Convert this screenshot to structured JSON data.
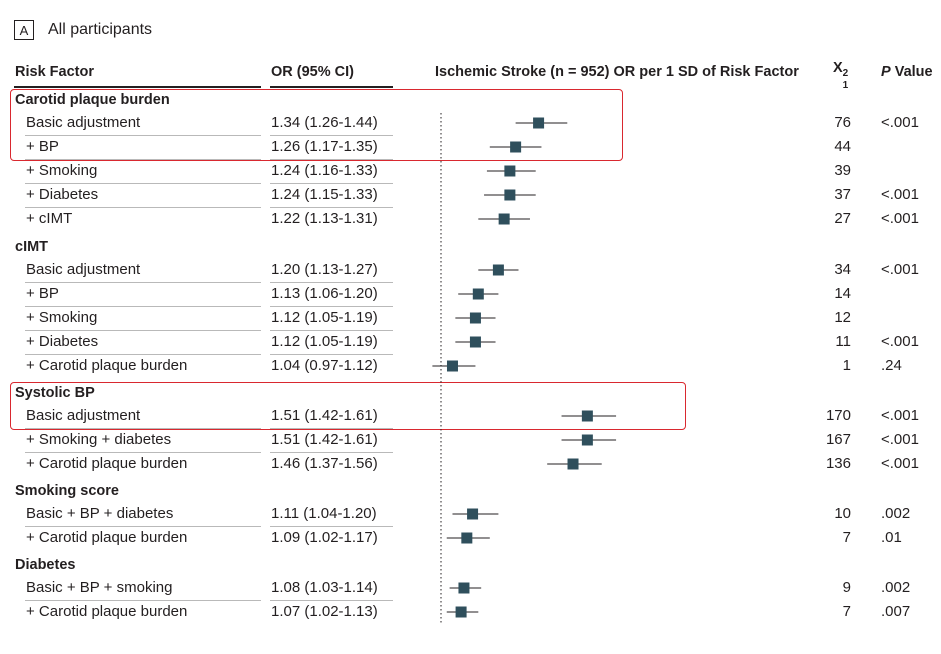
{
  "panel": {
    "label": "A",
    "title": "All participants"
  },
  "headers": {
    "risk_factor": "Risk Factor",
    "or": "OR (95% CI)",
    "plot": "Ischemic Stroke (n = 952) OR per 1 SD of Risk Factor",
    "chi": "X",
    "chi_sup": "2",
    "chi_sub": "1",
    "p": "P",
    "p_rest": " Value"
  },
  "colors": {
    "marker": "#2f4f5c",
    "highlight": "#d9282f",
    "text": "#231f20"
  },
  "chart_data": {
    "type": "forest",
    "xlabel": "Ischemic Stroke (n = 952) OR per 1 SD of Risk Factor",
    "reference_line": 1.0,
    "groups": [
      {
        "name": "Carotid plaque burden",
        "highlighted_rows": [
          0,
          1
        ],
        "rows": [
          {
            "label": "Basic adjustment",
            "or_text": "1.34 (1.26-1.44)",
            "or": 1.34,
            "lo": 1.26,
            "hi": 1.44,
            "chi2": "76",
            "p": "<.001"
          },
          {
            "label": "+ BP",
            "or_text": "1.26 (1.17-1.35)",
            "or": 1.26,
            "lo": 1.17,
            "hi": 1.35,
            "chi2": "44",
            "p": ""
          },
          {
            "label": "+ Smoking",
            "or_text": "1.24 (1.16-1.33)",
            "or": 1.24,
            "lo": 1.16,
            "hi": 1.33,
            "chi2": "39",
            "p": ""
          },
          {
            "label": "+ Diabetes",
            "or_text": "1.24 (1.15-1.33)",
            "or": 1.24,
            "lo": 1.15,
            "hi": 1.33,
            "chi2": "37",
            "p": "<.001"
          },
          {
            "label": "+ cIMT",
            "or_text": "1.22 (1.13-1.31)",
            "or": 1.22,
            "lo": 1.13,
            "hi": 1.31,
            "chi2": "27",
            "p": "<.001"
          }
        ]
      },
      {
        "name": "cIMT",
        "highlighted_rows": [],
        "rows": [
          {
            "label": "Basic adjustment",
            "or_text": "1.20 (1.13-1.27)",
            "or": 1.2,
            "lo": 1.13,
            "hi": 1.27,
            "chi2": "34",
            "p": "<.001"
          },
          {
            "label": "+ BP",
            "or_text": "1.13 (1.06-1.20)",
            "or": 1.13,
            "lo": 1.06,
            "hi": 1.2,
            "chi2": "14",
            "p": ""
          },
          {
            "label": "+ Smoking",
            "or_text": "1.12 (1.05-1.19)",
            "or": 1.12,
            "lo": 1.05,
            "hi": 1.19,
            "chi2": "12",
            "p": ""
          },
          {
            "label": "+ Diabetes",
            "or_text": "1.12 (1.05-1.19)",
            "or": 1.12,
            "lo": 1.05,
            "hi": 1.19,
            "chi2": "11",
            "p": "<.001"
          },
          {
            "label": "+ Carotid plaque burden",
            "or_text": "1.04 (0.97-1.12)",
            "or": 1.04,
            "lo": 0.97,
            "hi": 1.12,
            "chi2": "1",
            "p": ".24"
          }
        ]
      },
      {
        "name": "Systolic BP",
        "highlighted_rows": [
          0
        ],
        "rows": [
          {
            "label": "Basic adjustment",
            "or_text": "1.51 (1.42-1.61)",
            "or": 1.51,
            "lo": 1.42,
            "hi": 1.61,
            "chi2": "170",
            "p": "<.001"
          },
          {
            "label": "+ Smoking + diabetes",
            "or_text": "1.51 (1.42-1.61)",
            "or": 1.51,
            "lo": 1.42,
            "hi": 1.61,
            "chi2": "167",
            "p": "<.001"
          },
          {
            "label": "+ Carotid plaque burden",
            "or_text": "1.46 (1.37-1.56)",
            "or": 1.46,
            "lo": 1.37,
            "hi": 1.56,
            "chi2": "136",
            "p": "<.001"
          }
        ]
      },
      {
        "name": "Smoking score",
        "highlighted_rows": [],
        "rows": [
          {
            "label": "Basic + BP + diabetes",
            "or_text": "1.11 (1.04-1.20)",
            "or": 1.11,
            "lo": 1.04,
            "hi": 1.2,
            "chi2": "10",
            "p": ".002"
          },
          {
            "label": "+ Carotid plaque burden",
            "or_text": "1.09 (1.02-1.17)",
            "or": 1.09,
            "lo": 1.02,
            "hi": 1.17,
            "chi2": "7",
            "p": ".01"
          }
        ]
      },
      {
        "name": "Diabetes",
        "highlighted_rows": [],
        "rows": [
          {
            "label": "Basic + BP + smoking",
            "or_text": "1.08 (1.03-1.14)",
            "or": 1.08,
            "lo": 1.03,
            "hi": 1.14,
            "chi2": "9",
            "p": ".002"
          },
          {
            "label": "+ Carotid plaque burden",
            "or_text": "1.07 (1.02-1.13)",
            "or": 1.07,
            "lo": 1.02,
            "hi": 1.13,
            "chi2": "7",
            "p": ".007"
          }
        ]
      }
    ]
  }
}
